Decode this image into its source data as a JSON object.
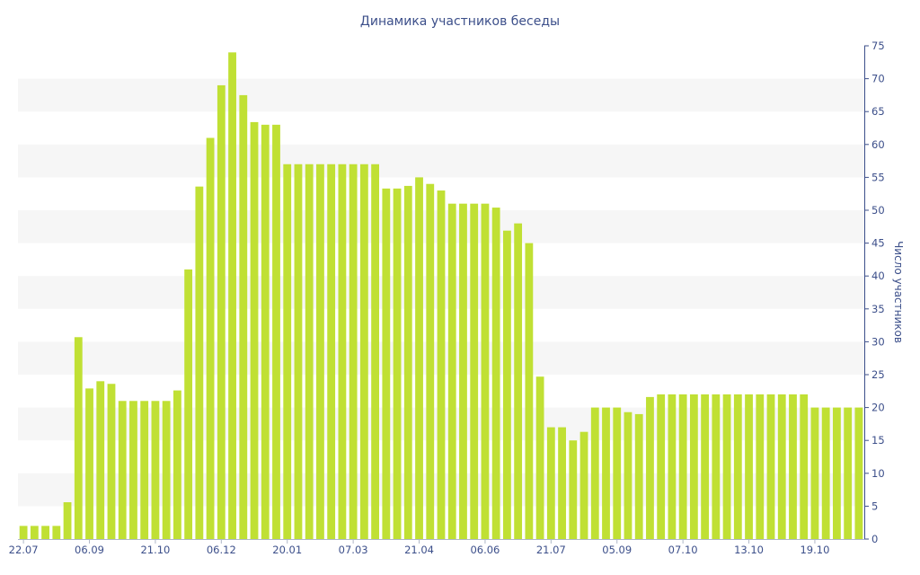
{
  "chart_data": {
    "type": "bar",
    "title": "Динамика участников беседы",
    "ylabel": "Число участников",
    "ylim": [
      0,
      75
    ],
    "yticks": [
      0,
      5,
      10,
      15,
      20,
      25,
      30,
      35,
      40,
      45,
      50,
      55,
      60,
      65,
      70,
      75
    ],
    "y_axis_side": "right",
    "grid": "alternating horizontal bands",
    "bar_color": "#c0e034",
    "band_color": "#f6f6f6",
    "text_color": "#3c4f8a",
    "x_tick_labels": [
      "22.07",
      "06.09",
      "21.10",
      "06.12",
      "20.01",
      "07.03",
      "21.04",
      "06.06",
      "21.07",
      "05.09",
      "07.10",
      "13.10",
      "19.10"
    ],
    "x_tick_bar_index": [
      0,
      6,
      12,
      18,
      24,
      30,
      36,
      42,
      48,
      54,
      60,
      66,
      72
    ],
    "values": [
      2,
      2,
      2,
      2,
      5.6,
      30.7,
      22.9,
      24,
      23.6,
      21,
      21,
      21,
      21,
      21,
      22.6,
      41,
      53.6,
      61,
      69,
      74,
      67.5,
      63.4,
      63,
      63,
      57,
      57,
      57,
      57,
      57,
      57,
      57,
      57,
      57,
      53.3,
      53.3,
      53.7,
      55,
      54,
      53,
      51,
      51,
      51,
      51,
      50.4,
      46.9,
      48,
      45,
      24.7,
      17,
      17,
      15,
      16.3,
      20,
      20,
      20,
      19.3,
      19,
      21.6,
      22,
      22,
      22,
      22,
      22,
      22,
      22,
      22,
      22,
      22,
      22,
      22,
      22,
      22,
      20,
      20,
      20,
      20,
      20
    ]
  }
}
